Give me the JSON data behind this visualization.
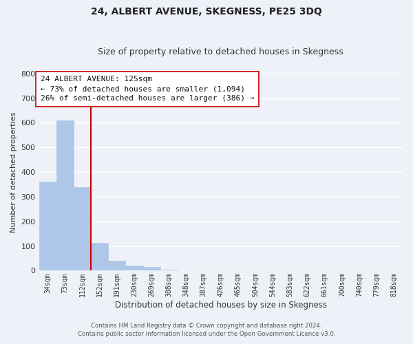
{
  "title": "24, ALBERT AVENUE, SKEGNESS, PE25 3DQ",
  "subtitle": "Size of property relative to detached houses in Skegness",
  "xlabel": "Distribution of detached houses by size in Skegness",
  "ylabel": "Number of detached properties",
  "bar_labels": [
    "34sqm",
    "73sqm",
    "112sqm",
    "152sqm",
    "191sqm",
    "230sqm",
    "269sqm",
    "308sqm",
    "348sqm",
    "387sqm",
    "426sqm",
    "465sqm",
    "504sqm",
    "544sqm",
    "583sqm",
    "622sqm",
    "661sqm",
    "700sqm",
    "740sqm",
    "779sqm",
    "818sqm"
  ],
  "bar_values": [
    360,
    610,
    340,
    113,
    40,
    22,
    14,
    5,
    0,
    0,
    0,
    0,
    0,
    0,
    0,
    0,
    0,
    0,
    0,
    0,
    2
  ],
  "bar_color": "#aec6e8",
  "vline_x": 2.5,
  "vline_color": "#cc0000",
  "annotation_title": "24 ALBERT AVENUE: 125sqm",
  "annotation_line1": "← 73% of detached houses are smaller (1,094)",
  "annotation_line2": "26% of semi-detached houses are larger (386) →",
  "annotation_box_color": "#ffffff",
  "annotation_box_edge": "#cc0000",
  "footer_line1": "Contains HM Land Registry data © Crown copyright and database right 2024.",
  "footer_line2": "Contains public sector information licensed under the Open Government Licence v3.0.",
  "ylim": [
    0,
    800
  ],
  "background_color": "#eef2f8",
  "grid_color": "#ffffff",
  "title_fontsize": 10,
  "subtitle_fontsize": 9,
  "yticks": [
    0,
    100,
    200,
    300,
    400,
    500,
    600,
    700,
    800
  ]
}
